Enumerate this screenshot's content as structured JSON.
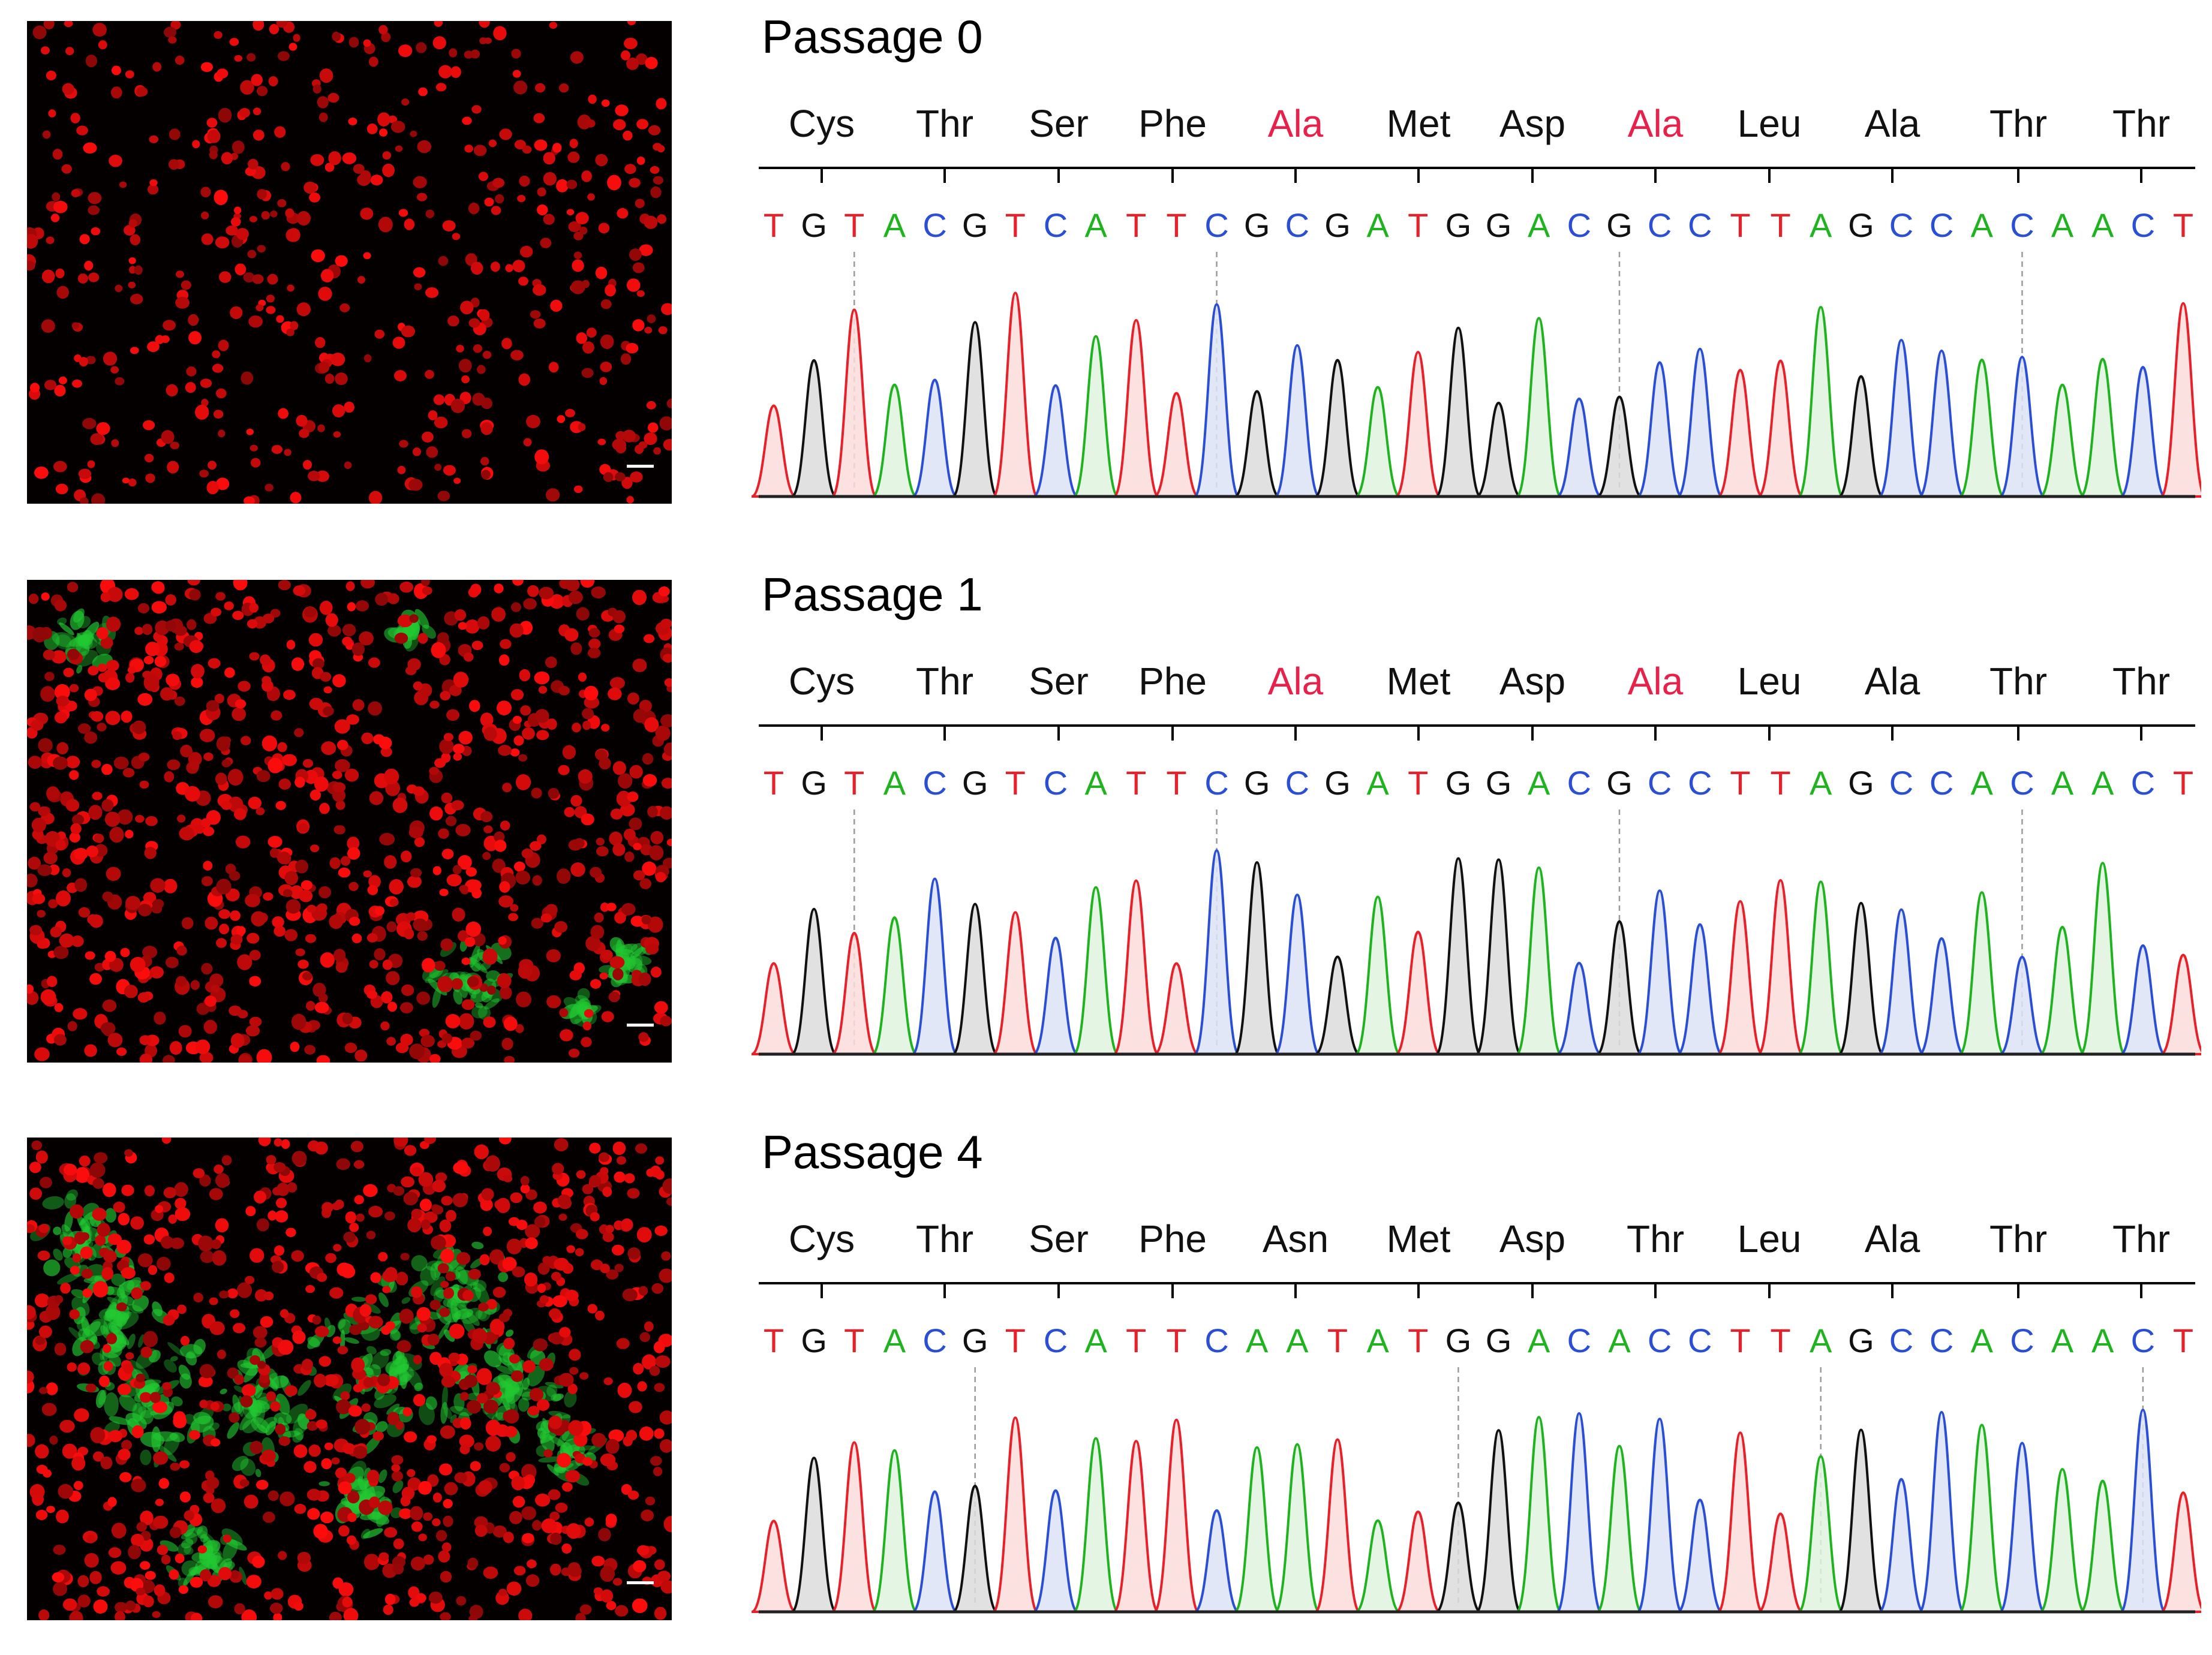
{
  "colors": {
    "A": "#1fb41f",
    "C": "#2a4fd6",
    "G": "#111111",
    "T": "#e8202a",
    "highlight": "#e8204a"
  },
  "panels": [
    {
      "title": "Passage 0",
      "amino_acids": [
        "Cys",
        "Thr",
        "Ser",
        "Phe",
        "Ala",
        "Met",
        "Asp",
        "Ala",
        "Leu",
        "Ala",
        "Thr",
        "Thr"
      ],
      "highlighted": [
        4,
        7
      ],
      "sequence": "TGTACGTCATTCGCGATGGACGCCTTAGCCACAACT",
      "green_level": 0.0
    },
    {
      "title": "Passage 1",
      "amino_acids": [
        "Cys",
        "Thr",
        "Ser",
        "Phe",
        "Ala",
        "Met",
        "Asp",
        "Ala",
        "Leu",
        "Ala",
        "Thr",
        "Thr"
      ],
      "highlighted": [
        4,
        7
      ],
      "sequence": "TGTACGTCATTCGCGATGGACGCCTTAGCCACAACT",
      "green_level": 0.25
    },
    {
      "title": "Passage 4",
      "amino_acids": [
        "Cys",
        "Thr",
        "Ser",
        "Phe",
        "Asn",
        "Met",
        "Asp",
        "Thr",
        "Leu",
        "Ala",
        "Thr",
        "Thr"
      ],
      "highlighted": [],
      "sequence": "TGTACGTCATTCAATATGGACACCTTAGCCACAACT",
      "green_level": 1.0
    }
  ]
}
